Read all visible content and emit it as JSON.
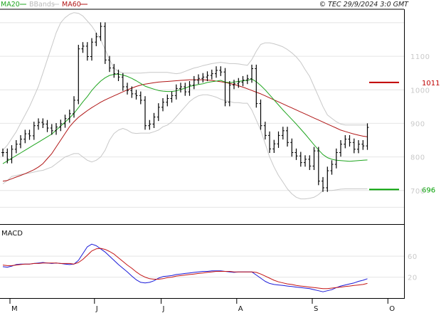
{
  "header": {
    "legend": [
      {
        "label": "MA20",
        "color": "#1fa51f"
      },
      {
        "label": "BBands",
        "color": "#c8c8c8"
      },
      {
        "label": "MA60",
        "color": "#b01515"
      }
    ],
    "source": "© TEC 29/9/2024 3:0 GMT"
  },
  "chart_data": [
    {
      "type": "candlestick",
      "title": "",
      "y_ticks": [
        "1100",
        "1000",
        "900",
        "800",
        "700"
      ],
      "ylim": [
        600,
        1240
      ],
      "x_ticks": [
        "M",
        "J",
        "J",
        "A",
        "S",
        "O"
      ],
      "grid": true,
      "overlays": [
        "MA20",
        "BBands",
        "MA60"
      ],
      "markers": [
        {
          "label": "1011",
          "value": 1022,
          "color": "#c00000"
        },
        {
          "label": "696",
          "value": 703,
          "color": "#00a000"
        }
      ],
      "series": {
        "close": [
          813,
          793,
          823,
          838,
          853,
          869,
          863,
          893,
          903,
          898,
          886,
          878,
          889,
          899,
          914,
          929,
          969,
          1122,
          1130,
          1099,
          1142,
          1158,
          1189,
          1089,
          1065,
          1048,
          1038,
          1009,
          998,
          988,
          983,
          969,
          893,
          898,
          919,
          948,
          963,
          974,
          983,
          1004,
          1009,
          994,
          1014,
          1029,
          1034,
          1038,
          1043,
          1048,
          1058,
          1053,
          963,
          1014,
          1018,
          1023,
          1029,
          1033,
          1063,
          959,
          893,
          864,
          824,
          839,
          864,
          878,
          843,
          813,
          803,
          783,
          793,
          773,
          818,
          728,
          708,
          759,
          778,
          813,
          838,
          853,
          843,
          823,
          838,
          833,
          888
        ],
        "ma20": [
          780,
          788,
          796,
          804,
          812,
          820,
          828,
          836,
          844,
          852,
          860,
          868,
          880,
          892,
          904,
          916,
          930,
          947,
          964,
          980,
          998,
          1013,
          1026,
          1036,
          1043,
          1046,
          1047,
          1044,
          1040,
          1034,
          1027,
          1019,
          1011,
          1006,
          1002,
          998,
          996,
          995,
          995,
          997,
          1001,
          1005,
          1010,
          1013,
          1016,
          1018,
          1022,
          1024,
          1026,
          1028,
          1023,
          1021,
          1023,
          1025,
          1027,
          1028,
          1032,
          1024,
          1013,
          1000,
          985,
          970,
          955,
          940,
          926,
          912,
          898,
          883,
          868,
          852,
          836,
          821,
          807,
          798,
          793,
          790,
          789,
          788,
          787,
          788,
          789,
          790,
          791
        ],
        "bb_upper": [
          820,
          835,
          855,
          875,
          900,
          925,
          950,
          980,
          1010,
          1050,
          1090,
          1130,
          1170,
          1200,
          1215,
          1225,
          1230,
          1228,
          1220,
          1205,
          1190,
          1170,
          1150,
          1120,
          1090,
          1065,
          1055,
          1050,
          1050,
          1050,
          1050,
          1050,
          1051,
          1052,
          1052,
          1052,
          1052,
          1052,
          1050,
          1048,
          1050,
          1055,
          1060,
          1065,
          1068,
          1072,
          1075,
          1078,
          1080,
          1082,
          1080,
          1078,
          1078,
          1077,
          1075,
          1073,
          1090,
          1115,
          1135,
          1140,
          1140,
          1137,
          1133,
          1128,
          1120,
          1110,
          1098,
          1082,
          1060,
          1040,
          1010,
          980,
          950,
          925,
          915,
          905,
          898,
          895,
          895,
          895,
          895,
          895,
          895
        ],
        "bb_lower": [
          720,
          730,
          742,
          745,
          748,
          750,
          752,
          755,
          758,
          760,
          765,
          770,
          780,
          790,
          800,
          805,
          810,
          810,
          800,
          790,
          785,
          790,
          800,
          820,
          850,
          870,
          880,
          885,
          880,
          872,
          870,
          871,
          871,
          871,
          875,
          880,
          890,
          895,
          905,
          920,
          935,
          950,
          965,
          975,
          982,
          985,
          985,
          982,
          978,
          972,
          968,
          965,
          962,
          962,
          960,
          960,
          940,
          910,
          880,
          840,
          800,
          770,
          745,
          725,
          705,
          690,
          680,
          675,
          675,
          677,
          680,
          688,
          700,
          700,
          700,
          702,
          704,
          705,
          705,
          705,
          705,
          705,
          705
        ],
        "ma60": [
          728,
          730,
          735,
          740,
          745,
          750,
          756,
          762,
          770,
          780,
          795,
          810,
          830,
          850,
          870,
          890,
          905,
          918,
          928,
          938,
          947,
          955,
          963,
          970,
          976,
          982,
          988,
          994,
          1000,
          1005,
          1010,
          1014,
          1017,
          1019,
          1021,
          1023,
          1024,
          1025,
          1026,
          1027,
          1028,
          1029,
          1030,
          1030,
          1030,
          1030,
          1029,
          1028,
          1026,
          1024,
          1022,
          1019,
          1016,
          1012,
          1008,
          1003,
          998,
          993,
          988,
          982,
          976,
          970,
          964,
          958,
          952,
          946,
          940,
          934,
          928,
          922,
          916,
          910,
          904,
          898,
          892,
          886,
          880,
          876,
          872,
          868,
          865,
          862,
          860
        ],
        "label_series": ""
      }
    },
    {
      "type": "line",
      "title": "MACD",
      "y_ticks": [
        "60",
        "20"
      ],
      "ylim": [
        -20,
        120
      ],
      "x_ticks": [
        "M",
        "J",
        "J",
        "A",
        "S",
        "O"
      ],
      "grid": true,
      "series": [
        {
          "name": "",
          "color": "#1a1ad8",
          "values": [
            40,
            39,
            41,
            44,
            45,
            45,
            45,
            46,
            47,
            48,
            47,
            46,
            47,
            46,
            45,
            44,
            45,
            52,
            65,
            78,
            83,
            80,
            74,
            68,
            60,
            52,
            44,
            37,
            30,
            22,
            15,
            10,
            9,
            10,
            13,
            18,
            21,
            22,
            23,
            25,
            26,
            27,
            28,
            29,
            30,
            31,
            31,
            32,
            32,
            32,
            31,
            30,
            29,
            30,
            30,
            30,
            30,
            24,
            18,
            12,
            8,
            6,
            5,
            4,
            3,
            2,
            1,
            0,
            -1,
            -2,
            -4,
            -6,
            -8,
            -6,
            -4,
            0,
            3,
            5,
            7,
            9,
            12,
            14,
            17
          ]
        },
        {
          "name": "",
          "color": "#c41515",
          "values": [
            43,
            42,
            42,
            43,
            44,
            45,
            45,
            46,
            46,
            47,
            47,
            47,
            47,
            46,
            46,
            46,
            45,
            48,
            54,
            62,
            70,
            74,
            75,
            73,
            69,
            64,
            57,
            50,
            43,
            37,
            30,
            24,
            20,
            17,
            16,
            16,
            17,
            19,
            20,
            22,
            23,
            24,
            25,
            26,
            27,
            28,
            29,
            30,
            31,
            31,
            31,
            31,
            30,
            30,
            30,
            30,
            30,
            29,
            26,
            22,
            18,
            14,
            11,
            9,
            7,
            6,
            4,
            3,
            2,
            1,
            0,
            -1,
            -2,
            -2,
            -1,
            0,
            1,
            2,
            3,
            4,
            5,
            6,
            8
          ]
        }
      ]
    }
  ]
}
